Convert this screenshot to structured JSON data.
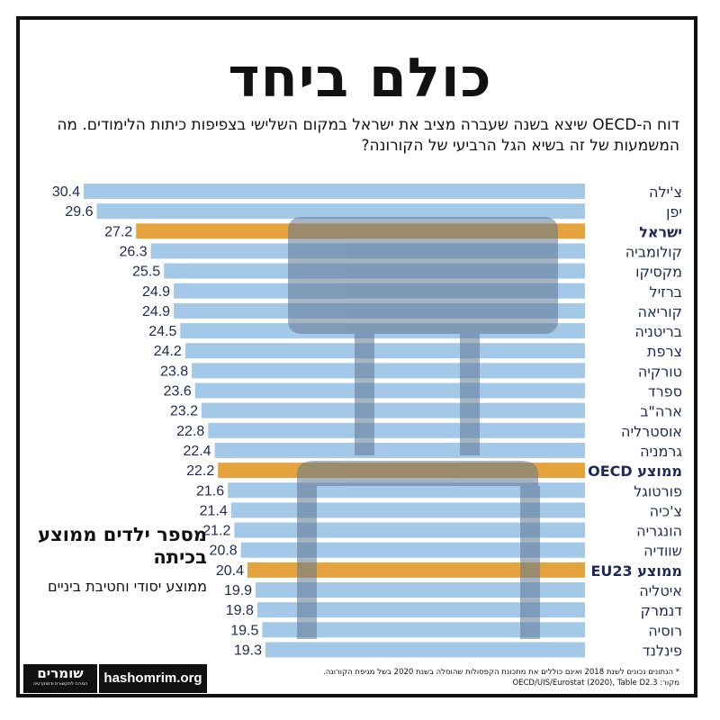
{
  "title": "כולם ביחד",
  "subtitle": "דוח ה-OECD שיצא בשנה שעברה מציב את ישראל במקום השלישי בצפיפות כיתות הלימודים. מה המשמעות של זה בשיא הגל הרביעי של הקורונה?",
  "side_title": "מספר ילדים ממוצע בכיתה",
  "side_subtitle": "ממוצע יסודי וחטיבת ביניים",
  "footnote": "* הנתונים נכונים לשנת 2018 ואינם כוללים את מתכונת הקפסולות שהוסלה בשנת 2020 בשל מגיפת הקורונה.",
  "source": "מקור: OECD/UIS/Eurostat (2020), Table D2.3",
  "logo": {
    "name": "שומרים",
    "tagline": "המרכז לתקשורת ודמוקרטיה"
  },
  "website": "hashomrim.org",
  "colors": {
    "bar": "#a4c8e8",
    "highlight": "#e4a33c",
    "furniture": "#5f7891",
    "text": "#1e2a55"
  },
  "chart_data": {
    "type": "bar",
    "orientation": "horizontal",
    "categories": [
      "צ'ילה",
      "יפן",
      "ישראל",
      "קולומביה",
      "מקסיקו",
      "ברזיל",
      "קוריאה",
      "בריטניה",
      "צרפת",
      "טורקיה",
      "ספרד",
      "ארה\"ב",
      "אוסטרליה",
      "גרמניה",
      "ממוצע OECD",
      "פורטוגל",
      "צ'כיה",
      "הונגריה",
      "שוודיה",
      "ממוצע EU23",
      "איטליה",
      "דנמרק",
      "רוסיה",
      "פינלנד"
    ],
    "values": [
      30.4,
      29.6,
      27.2,
      26.3,
      25.5,
      24.9,
      24.9,
      24.5,
      24.2,
      23.8,
      23.6,
      23.2,
      22.8,
      22.4,
      22.2,
      21.6,
      21.4,
      21.2,
      20.8,
      20.4,
      19.9,
      19.8,
      19.5,
      19.3
    ],
    "highlighted": [
      "ישראל",
      "ממוצע OECD",
      "ממוצע EU23"
    ],
    "title": "",
    "xlabel": "",
    "ylabel": "",
    "grid": false
  }
}
